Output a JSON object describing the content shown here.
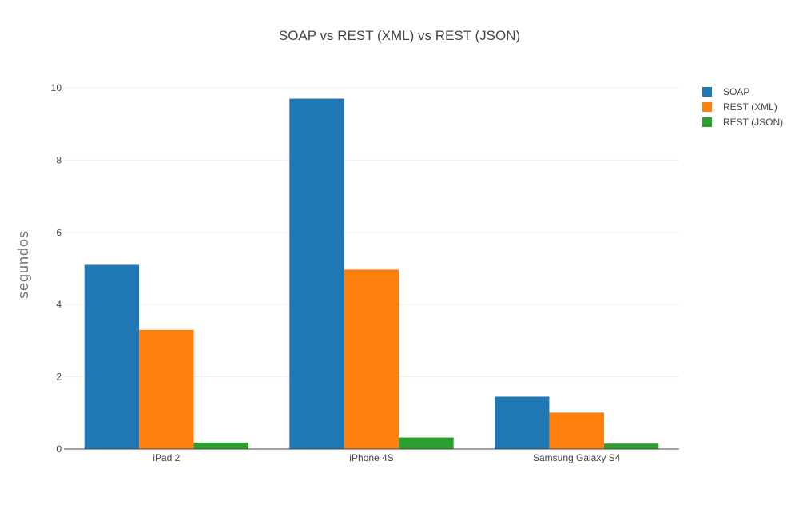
{
  "chart_data": {
    "type": "bar",
    "title": "SOAP vs REST (XML) vs REST (JSON)",
    "xlabel": "",
    "ylabel": "segundos",
    "categories": [
      "iPad 2",
      "iPhone 4S",
      "Samsung Galaxy S4"
    ],
    "series": [
      {
        "name": "SOAP",
        "color": "#1f77b4",
        "values": [
          5.1,
          9.7,
          1.45
        ]
      },
      {
        "name": "REST (XML)",
        "color": "#ff7f0e",
        "values": [
          3.3,
          4.97,
          1.01
        ]
      },
      {
        "name": "REST (JSON)",
        "color": "#2ca02c",
        "values": [
          0.18,
          0.32,
          0.15
        ]
      }
    ],
    "ylim": [
      0,
      10
    ],
    "yticks": [
      0,
      2,
      4,
      6,
      8,
      10
    ],
    "grid": true,
    "legend_position": "top-right"
  }
}
